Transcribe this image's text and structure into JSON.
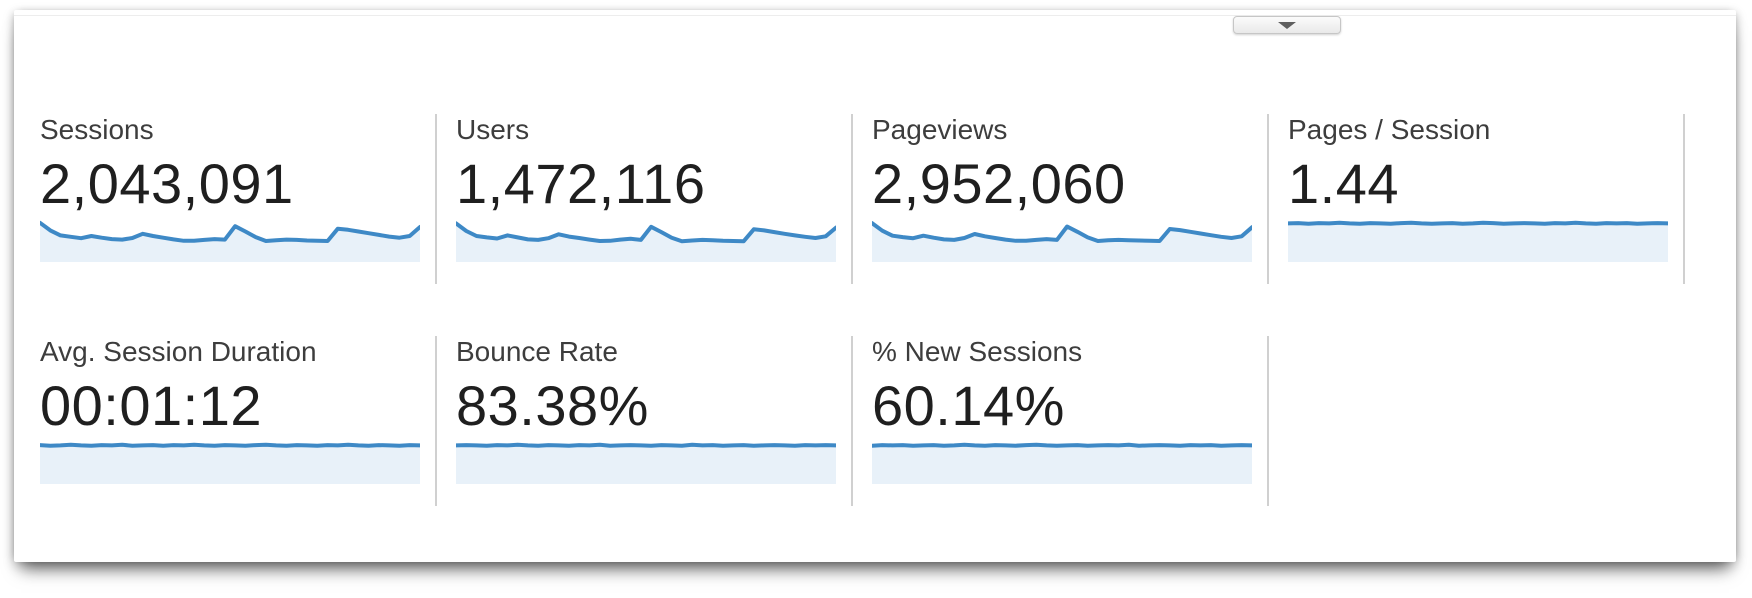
{
  "panel": {
    "collapse_button": {
      "icon": "triangle-down"
    }
  },
  "colors": {
    "spark_line": "#3e89c6",
    "spark_fill": "#e8f1f9",
    "divider": "#d0d0d0",
    "label_text": "#3d3d3d",
    "value_text": "#1f1f1f"
  },
  "metrics": {
    "row1": [
      {
        "id": "sessions",
        "label": "Sessions",
        "value": "2,043,091",
        "spark": [
          0.97,
          0.7,
          0.52,
          0.47,
          0.42,
          0.5,
          0.44,
          0.39,
          0.37,
          0.43,
          0.58,
          0.5,
          0.44,
          0.38,
          0.33,
          0.33,
          0.36,
          0.39,
          0.37,
          0.85,
          0.66,
          0.46,
          0.32,
          0.35,
          0.37,
          0.36,
          0.34,
          0.33,
          0.32,
          0.76,
          0.72,
          0.66,
          0.6,
          0.54,
          0.48,
          0.44,
          0.5,
          0.82
        ]
      },
      {
        "id": "users",
        "label": "Users",
        "value": "1,472,116",
        "spark": [
          0.95,
          0.68,
          0.5,
          0.45,
          0.41,
          0.52,
          0.45,
          0.38,
          0.36,
          0.42,
          0.56,
          0.48,
          0.43,
          0.37,
          0.32,
          0.33,
          0.37,
          0.4,
          0.36,
          0.83,
          0.64,
          0.44,
          0.31,
          0.34,
          0.36,
          0.35,
          0.33,
          0.32,
          0.31,
          0.74,
          0.7,
          0.64,
          0.58,
          0.52,
          0.47,
          0.43,
          0.49,
          0.8
        ]
      },
      {
        "id": "pageviews",
        "label": "Pageviews",
        "value": "2,952,060",
        "spark": [
          0.96,
          0.69,
          0.51,
          0.46,
          0.42,
          0.51,
          0.44,
          0.38,
          0.36,
          0.43,
          0.57,
          0.49,
          0.43,
          0.37,
          0.33,
          0.33,
          0.36,
          0.39,
          0.36,
          0.84,
          0.65,
          0.45,
          0.32,
          0.35,
          0.36,
          0.35,
          0.34,
          0.33,
          0.32,
          0.75,
          0.71,
          0.65,
          0.59,
          0.53,
          0.47,
          0.43,
          0.49,
          0.81
        ]
      },
      {
        "id": "pages-per-session",
        "label": "Pages / Session",
        "value": "1.44",
        "spark": [
          0.95,
          0.96,
          0.94,
          0.96,
          0.95,
          0.97,
          0.95,
          0.94,
          0.96,
          0.95,
          0.94,
          0.96,
          0.97,
          0.95,
          0.94,
          0.95,
          0.96,
          0.94,
          0.95,
          0.97,
          0.96,
          0.94,
          0.95,
          0.96,
          0.95,
          0.94,
          0.96,
          0.95,
          0.97,
          0.95,
          0.94,
          0.96,
          0.95,
          0.96,
          0.94,
          0.95,
          0.96,
          0.95
        ]
      }
    ],
    "row2": [
      {
        "id": "avg-session-duration",
        "label": "Avg. Session Duration",
        "value": "00:01:12",
        "spark": [
          0.96,
          0.94,
          0.95,
          0.97,
          0.95,
          0.94,
          0.96,
          0.95,
          0.97,
          0.94,
          0.95,
          0.96,
          0.94,
          0.96,
          0.95,
          0.97,
          0.95,
          0.94,
          0.96,
          0.95,
          0.94,
          0.96,
          0.97,
          0.95,
          0.94,
          0.96,
          0.95,
          0.94,
          0.96,
          0.95,
          0.97,
          0.95,
          0.94,
          0.96,
          0.95,
          0.94,
          0.96,
          0.95
        ]
      },
      {
        "id": "bounce-rate",
        "label": "Bounce Rate",
        "value": "83.38%",
        "spark": [
          0.95,
          0.96,
          0.95,
          0.94,
          0.96,
          0.95,
          0.97,
          0.95,
          0.94,
          0.96,
          0.95,
          0.94,
          0.96,
          0.95,
          0.97,
          0.94,
          0.95,
          0.96,
          0.95,
          0.94,
          0.96,
          0.95,
          0.94,
          0.97,
          0.95,
          0.96,
          0.94,
          0.95,
          0.96,
          0.94,
          0.95,
          0.96,
          0.95,
          0.94,
          0.96,
          0.95,
          0.96,
          0.95
        ]
      },
      {
        "id": "new-sessions",
        "label": "% New Sessions",
        "value": "60.14%",
        "spark": [
          0.94,
          0.96,
          0.95,
          0.96,
          0.94,
          0.95,
          0.96,
          0.94,
          0.95,
          0.97,
          0.95,
          0.94,
          0.96,
          0.95,
          0.94,
          0.96,
          0.97,
          0.95,
          0.94,
          0.95,
          0.96,
          0.94,
          0.95,
          0.96,
          0.95,
          0.97,
          0.94,
          0.95,
          0.96,
          0.95,
          0.94,
          0.96,
          0.95,
          0.96,
          0.94,
          0.95,
          0.96,
          0.95
        ]
      }
    ]
  }
}
